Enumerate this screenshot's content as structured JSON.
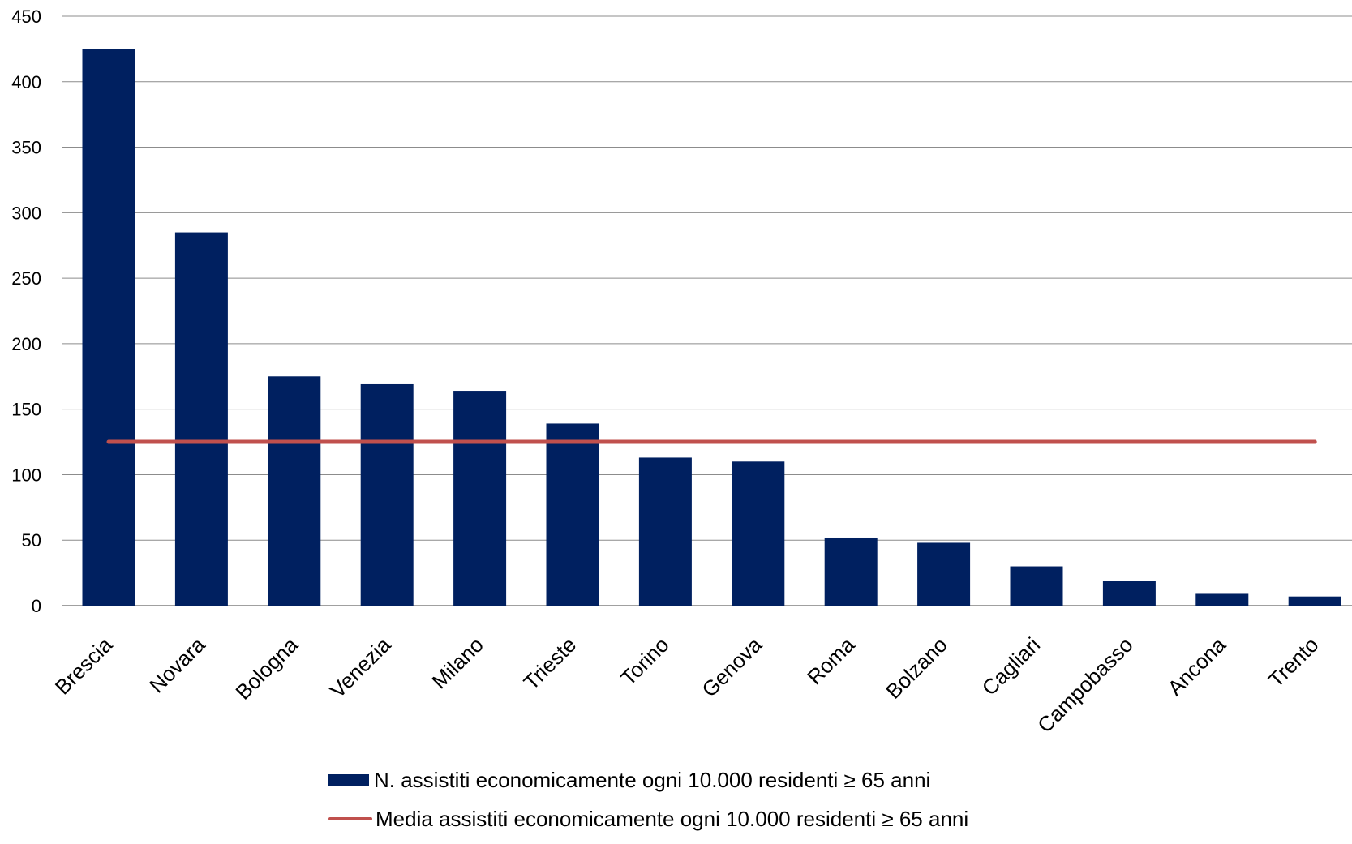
{
  "chart_data": {
    "type": "bar",
    "categories": [
      "Brescia",
      "Novara",
      "Bologna",
      "Venezia",
      "Milano",
      "Trieste",
      "Torino",
      "Genova",
      "Roma",
      "Bolzano",
      "Cagliari",
      "Campobasso",
      "Ancona",
      "Trento"
    ],
    "series": [
      {
        "name": "N. assistiti economicamente ogni 10.000 residenti ≥ 65 anni",
        "type": "bar",
        "color": "#002060",
        "values": [
          425,
          285,
          175,
          169,
          164,
          139,
          113,
          110,
          52,
          48,
          30,
          19,
          9,
          7
        ]
      },
      {
        "name": "Media assistiti economicamente ogni 10.000 residenti ≥ 65 anni",
        "type": "line",
        "color": "#C0504D",
        "values": [
          125,
          125,
          125,
          125,
          125,
          125,
          125,
          125,
          125,
          125,
          125,
          125,
          125,
          125
        ]
      }
    ],
    "yticks": [
      "0",
      "50",
      "100",
      "150",
      "200",
      "250",
      "300",
      "350",
      "400",
      "450"
    ],
    "ylim": [
      0,
      450
    ],
    "grid": true,
    "legend_position": "bottom",
    "title": "",
    "xlabel": "",
    "ylabel": ""
  }
}
